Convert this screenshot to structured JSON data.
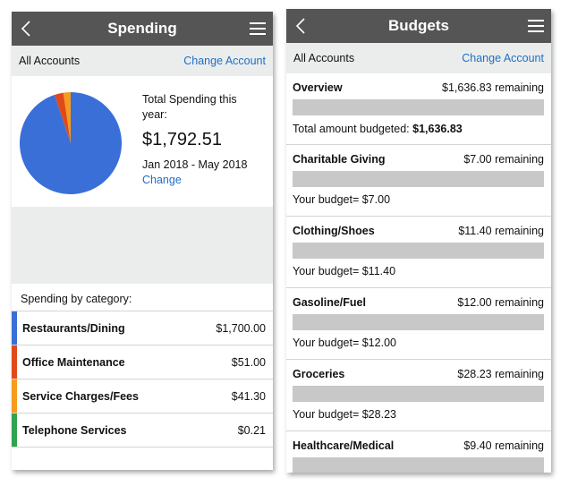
{
  "spending": {
    "header": {
      "title": "Spending"
    },
    "account_bar": {
      "label": "All Accounts",
      "change_label": "Change Account"
    },
    "summary": {
      "total_label": "Total Spending this year:",
      "amount": "$1,792.51",
      "date_range": "Jan 2018 - May 2018",
      "change_label": "Change"
    },
    "category_heading": "Spending by category:",
    "categories": [
      {
        "name": "Restaurants/Dining",
        "amount": "$1,700.00",
        "value": 1700.0,
        "color": "#3a6fd8"
      },
      {
        "name": "Office Maintenance",
        "amount": "$51.00",
        "value": 51.0,
        "color": "#e04a1b"
      },
      {
        "name": "Service Charges/Fees",
        "amount": "$41.30",
        "value": 41.3,
        "color": "#f79b1c"
      },
      {
        "name": "Telephone Services",
        "amount": "$0.21",
        "value": 0.21,
        "color": "#2ea44f"
      }
    ]
  },
  "budgets": {
    "header": {
      "title": "Budgets"
    },
    "account_bar": {
      "label": "All Accounts",
      "change_label": "Change Account"
    },
    "overview": {
      "title": "Overview",
      "remaining": "$1,636.83 remaining",
      "total_prefix": "Total amount budgeted: ",
      "total_value": "$1,636.83"
    },
    "items": [
      {
        "name": "Charitable Giving",
        "remaining": "$7.00 remaining",
        "budget": "Your budget= $7.00"
      },
      {
        "name": "Clothing/Shoes",
        "remaining": "$11.40 remaining",
        "budget": "Your budget= $11.40"
      },
      {
        "name": "Gasoline/Fuel",
        "remaining": "$12.00 remaining",
        "budget": "Your budget= $12.00"
      },
      {
        "name": "Groceries",
        "remaining": "$28.23 remaining",
        "budget": "Your budget= $28.23"
      },
      {
        "name": "Healthcare/Medical",
        "remaining": "$9.40 remaining",
        "budget": ""
      }
    ]
  },
  "icons": {
    "back": "chevron-left-icon",
    "menu": "hamburger-menu-icon"
  }
}
